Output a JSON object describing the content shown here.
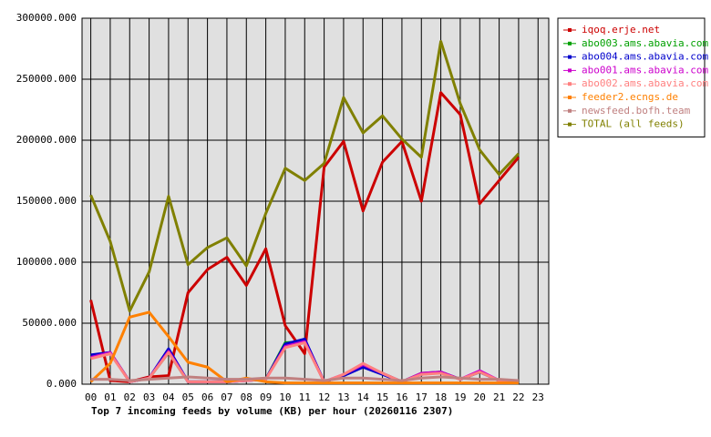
{
  "chart_data": {
    "type": "line",
    "title": "Top 7 incoming feeds by volume (KB) per hour (20260116 2307)",
    "categories": [
      "00",
      "01",
      "02",
      "03",
      "04",
      "05",
      "06",
      "07",
      "08",
      "09",
      "10",
      "11",
      "12",
      "13",
      "14",
      "15",
      "16",
      "17",
      "18",
      "19",
      "20",
      "21",
      "22",
      "23"
    ],
    "ylim": [
      0,
      300000
    ],
    "yticks": [
      {
        "value": 0,
        "label": "0.000"
      },
      {
        "value": 50000,
        "label": "50000.000"
      },
      {
        "value": 100000,
        "label": "100000.000"
      },
      {
        "value": 150000,
        "label": "150000.000"
      },
      {
        "value": 200000,
        "label": "200000.000"
      },
      {
        "value": 250000,
        "label": "250000.000"
      },
      {
        "value": 300000,
        "label": "300000.000"
      }
    ],
    "grid": true,
    "legend_position": "right",
    "series": [
      {
        "name": "iqoq.erje.net",
        "color": "#cc0000",
        "values": [
          69000,
          3000,
          2000,
          6000,
          7000,
          75000,
          94000,
          104000,
          81000,
          111000,
          48000,
          25000,
          178000,
          199000,
          142000,
          182000,
          199000,
          150000,
          239000,
          221000,
          148000,
          167000,
          186000,
          null
        ]
      },
      {
        "name": "abo003.ams.abavia.com",
        "color": "#00a000",
        "values": [
          23000,
          26000,
          2000,
          5000,
          26000,
          2000,
          2000,
          2000,
          3000,
          4000,
          34000,
          35000,
          2000,
          7000,
          15000,
          9000,
          2000,
          9000,
          10000,
          4000,
          10000,
          3000,
          2000,
          null
        ]
      },
      {
        "name": "abo004.ams.abavia.com",
        "color": "#0000cc",
        "values": [
          24000,
          26000,
          2000,
          5000,
          29000,
          2000,
          2000,
          2000,
          3000,
          4000,
          33000,
          37000,
          2000,
          7000,
          14000,
          8000,
          2000,
          8000,
          10000,
          4000,
          10000,
          3000,
          2000,
          null
        ]
      },
      {
        "name": "abo001.ams.abavia.com",
        "color": "#cc00cc",
        "values": [
          22000,
          26000,
          2000,
          5000,
          27000,
          2000,
          2000,
          2000,
          3000,
          4000,
          31000,
          35000,
          2000,
          8000,
          16000,
          9000,
          2000,
          9000,
          10000,
          4000,
          11000,
          3000,
          2000,
          null
        ]
      },
      {
        "name": "abo002.ams.abavia.com",
        "color": "#ff8080",
        "values": [
          21000,
          25000,
          2000,
          5000,
          26000,
          2000,
          2000,
          2000,
          3000,
          4000,
          30000,
          34000,
          2000,
          8000,
          17000,
          9000,
          2000,
          8000,
          9000,
          4000,
          10000,
          3000,
          2000,
          null
        ]
      },
      {
        "name": "feeder2.ecngs.de",
        "color": "#ff8000",
        "values": [
          2000,
          17000,
          55000,
          59000,
          39000,
          18000,
          14000,
          2000,
          5000,
          2000,
          1000,
          1000,
          1000,
          1000,
          1000,
          1000,
          1000,
          1000,
          1000,
          1000,
          1000,
          1000,
          1000,
          null
        ]
      },
      {
        "name": "newsfeed.bofh.team",
        "color": "#c08080",
        "values": [
          4000,
          4000,
          3000,
          4000,
          5000,
          6000,
          5000,
          4000,
          4000,
          5000,
          5000,
          4000,
          3000,
          5000,
          5000,
          4000,
          3000,
          5000,
          6000,
          5000,
          4000,
          4000,
          3000,
          null
        ]
      },
      {
        "name": "TOTAL (all feeds)",
        "color": "#808000",
        "values": [
          155000,
          117000,
          60000,
          92000,
          154000,
          98000,
          112000,
          120000,
          97000,
          140000,
          177000,
          167000,
          181000,
          235000,
          206000,
          220000,
          201000,
          186000,
          281000,
          230000,
          192000,
          172000,
          189000,
          null
        ]
      }
    ]
  }
}
